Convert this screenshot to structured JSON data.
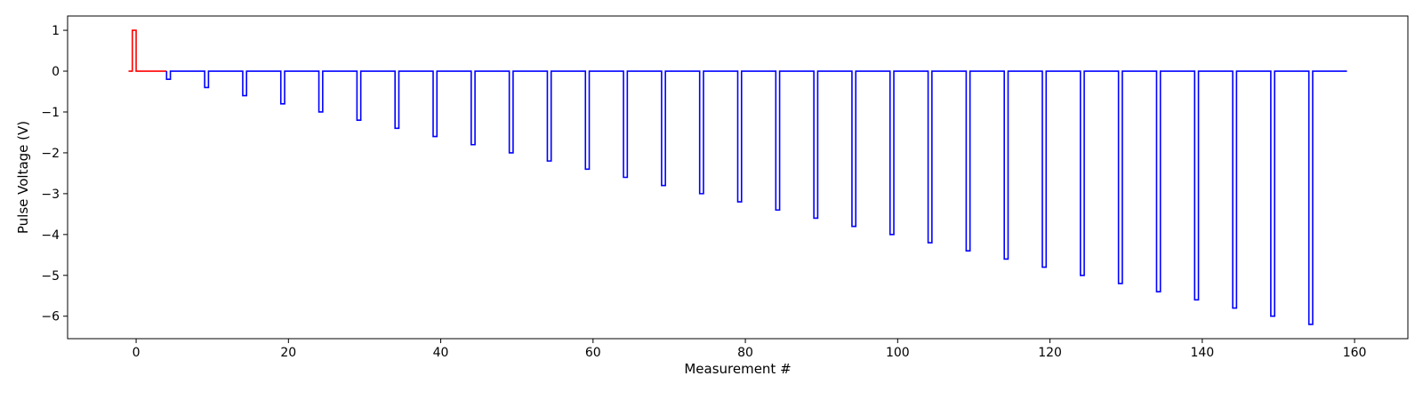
{
  "chart_data": {
    "type": "line",
    "title": "",
    "xlabel": "Measurement #",
    "ylabel": "Pulse Voltage (V)",
    "xlim": [
      -9,
      167
    ],
    "ylim": [
      -6.55,
      1.35
    ],
    "xticks": [
      0,
      20,
      40,
      60,
      80,
      100,
      120,
      140,
      160
    ],
    "yticks": [
      1,
      0,
      -1,
      -2,
      -3,
      -4,
      -5,
      -6
    ],
    "grid": false,
    "legend": "none",
    "series": [
      {
        "color": "#ff0000",
        "step": "post",
        "x": [
          -1,
          -0.5,
          -0.5,
          0,
          0,
          4
        ],
        "y": [
          0,
          0,
          1,
          1,
          0,
          0
        ]
      },
      {
        "color": "#0000ff",
        "step": "post",
        "pulse_start": [
          4,
          9,
          14,
          19,
          24,
          29,
          34,
          39,
          44,
          49,
          54,
          59,
          64,
          69,
          74,
          79,
          84,
          89,
          94,
          99,
          104,
          109,
          114,
          119,
          124,
          129,
          134,
          139,
          144,
          149,
          154
        ],
        "pulse_width": 0.5,
        "pulse_values": [
          -0.2,
          -0.4,
          -0.6,
          -0.8,
          -1.0,
          -1.2,
          -1.4,
          -1.6,
          -1.8,
          -2.0,
          -2.2,
          -2.4,
          -2.6,
          -2.8,
          -3.0,
          -3.2,
          -3.4,
          -3.6,
          -3.8,
          -4.0,
          -4.2,
          -4.4,
          -4.6,
          -4.8,
          -5.0,
          -5.2,
          -5.4,
          -5.6,
          -5.8,
          -6.0,
          -6.2
        ],
        "baseline": 0,
        "x_end": 159
      }
    ]
  }
}
